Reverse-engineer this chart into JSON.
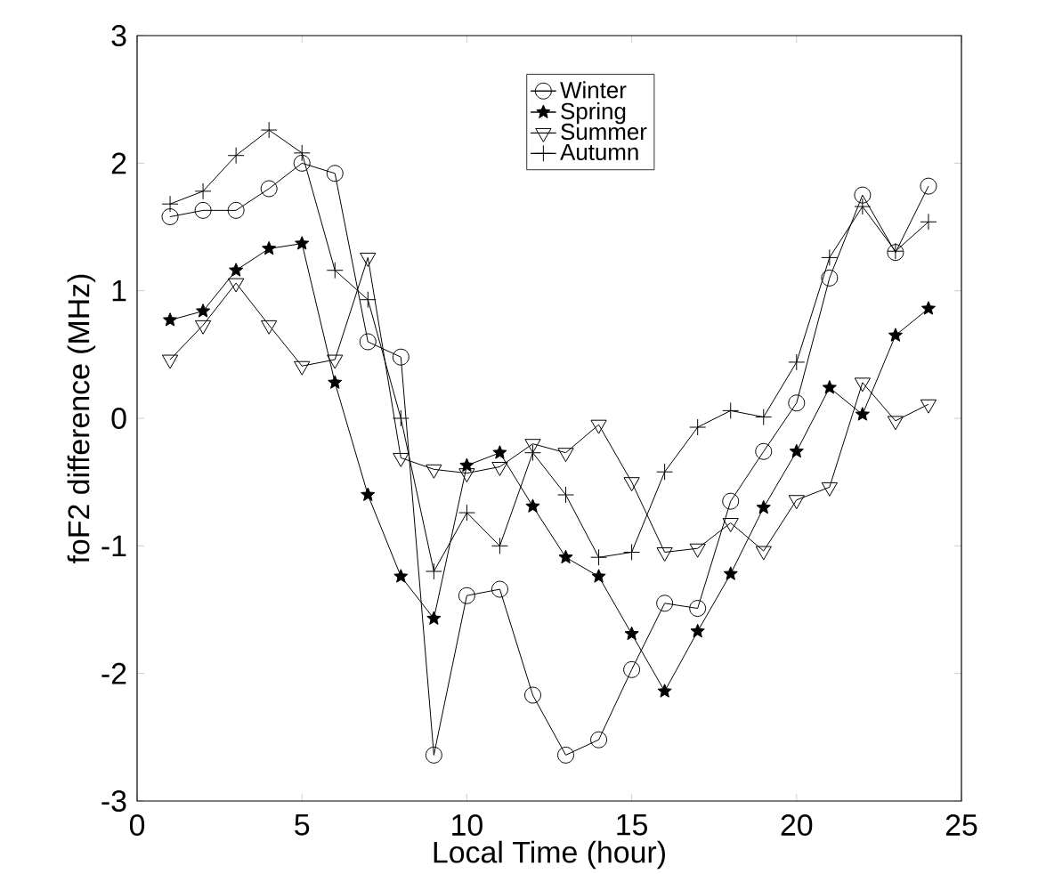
{
  "chart_data": {
    "type": "line",
    "xlabel": "Local Time (hour)",
    "ylabel": "foF2 difference (MHz)",
    "x": [
      1,
      2,
      3,
      4,
      5,
      6,
      7,
      8,
      9,
      10,
      11,
      12,
      13,
      14,
      15,
      16,
      17,
      18,
      19,
      20,
      21,
      22,
      23,
      24
    ],
    "series": [
      {
        "name": "Winter",
        "color": "#000000",
        "marker": "circle",
        "values": [
          1.58,
          1.63,
          1.63,
          1.8,
          2.0,
          1.92,
          0.6,
          0.48,
          -2.64,
          -1.39,
          -1.34,
          -2.17,
          -2.64,
          -2.52,
          -1.97,
          -1.45,
          -1.49,
          -0.65,
          -0.26,
          0.12,
          1.1,
          1.75,
          1.3,
          1.82
        ]
      },
      {
        "name": "Spring",
        "color": "#000000",
        "marker": "star",
        "values": [
          0.77,
          0.84,
          1.16,
          1.33,
          1.37,
          0.28,
          -0.6,
          -1.24,
          -1.57,
          -0.37,
          -0.27,
          -0.69,
          -1.09,
          -1.24,
          -1.69,
          -2.14,
          -1.67,
          -1.22,
          -0.7,
          -0.26,
          0.24,
          0.03,
          0.65,
          0.86
        ]
      },
      {
        "name": "Summer",
        "color": "#000000",
        "marker": "triangle",
        "values": [
          0.46,
          0.73,
          1.06,
          0.73,
          0.41,
          0.46,
          1.26,
          -0.31,
          -0.4,
          -0.43,
          -0.38,
          -0.2,
          -0.27,
          -0.05,
          -0.5,
          -1.05,
          -1.02,
          -0.82,
          -1.04,
          -0.64,
          -0.54,
          0.28,
          -0.02,
          0.11
        ]
      },
      {
        "name": "Autumn",
        "color": "#000000",
        "marker": "cross",
        "values": [
          1.68,
          1.78,
          2.06,
          2.26,
          2.08,
          1.16,
          0.93,
          0.0,
          -1.2,
          -0.74,
          -1.0,
          -0.27,
          -0.6,
          -1.09,
          -1.05,
          -0.42,
          -0.07,
          0.06,
          0.01,
          0.44,
          1.26,
          1.66,
          1.31,
          1.54
        ]
      }
    ],
    "xlim": [
      0,
      25
    ],
    "ylim": [
      -3,
      3
    ],
    "xticks": [
      0,
      5,
      10,
      15,
      20,
      25
    ],
    "yticks": [
      -3,
      -2,
      -1,
      0,
      1,
      2,
      3
    ],
    "grid": false,
    "legend": "top",
    "line_style": "solid"
  }
}
